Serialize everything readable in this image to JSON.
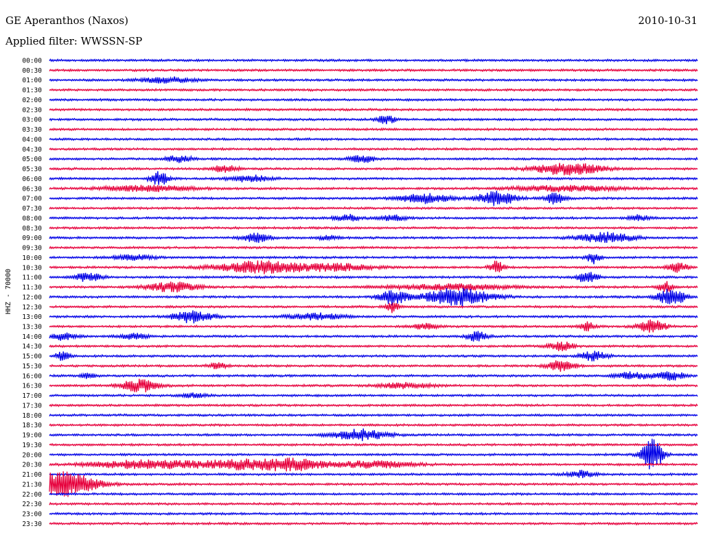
{
  "header": {
    "station": "GE Aperanthos (Naxos)",
    "date": "2010-10-31",
    "filter": "Applied filter: WWSSN-SP"
  },
  "chart_data": {
    "type": "line",
    "chart_kind": "helicorder",
    "ylabel": "HHZ - 70000",
    "row_times": [
      "00:00",
      "00:30",
      "01:00",
      "01:30",
      "02:00",
      "02:30",
      "03:00",
      "03:30",
      "04:00",
      "04:30",
      "05:00",
      "05:30",
      "06:00",
      "06:30",
      "07:00",
      "07:30",
      "08:00",
      "08:30",
      "09:00",
      "09:30",
      "10:00",
      "10:30",
      "11:00",
      "11:30",
      "12:00",
      "12:30",
      "13:00",
      "13:30",
      "14:00",
      "14:30",
      "15:00",
      "15:30",
      "16:00",
      "16:30",
      "17:00",
      "17:30",
      "18:00",
      "18:30",
      "19:00",
      "19:30",
      "20:00",
      "20:30",
      "21:00",
      "21:30",
      "22:00",
      "22:30",
      "23:00",
      "23:30"
    ],
    "row_minutes": 30,
    "trace_colors": [
      "#0000e6",
      "#e6003c"
    ],
    "events": [
      {
        "row": 2,
        "t": 0.18,
        "amp": 4,
        "dur": 0.04
      },
      {
        "row": 6,
        "t": 0.52,
        "amp": 6,
        "dur": 0.015
      },
      {
        "row": 10,
        "t": 0.2,
        "amp": 5,
        "dur": 0.02
      },
      {
        "row": 10,
        "t": 0.48,
        "amp": 6,
        "dur": 0.02
      },
      {
        "row": 11,
        "t": 0.27,
        "amp": 5,
        "dur": 0.02
      },
      {
        "row": 11,
        "t": 0.8,
        "amp": 9,
        "dur": 0.05
      },
      {
        "row": 12,
        "t": 0.17,
        "amp": 10,
        "dur": 0.015
      },
      {
        "row": 12,
        "t": 0.31,
        "amp": 5,
        "dur": 0.03
      },
      {
        "row": 13,
        "t": 0.15,
        "amp": 4,
        "dur": 0.07
      },
      {
        "row": 13,
        "t": 0.8,
        "amp": 4,
        "dur": 0.08
      },
      {
        "row": 14,
        "t": 0.58,
        "amp": 7,
        "dur": 0.04
      },
      {
        "row": 14,
        "t": 0.69,
        "amp": 10,
        "dur": 0.03
      },
      {
        "row": 14,
        "t": 0.78,
        "amp": 8,
        "dur": 0.015
      },
      {
        "row": 16,
        "t": 0.46,
        "amp": 5,
        "dur": 0.02
      },
      {
        "row": 16,
        "t": 0.53,
        "amp": 4,
        "dur": 0.02
      },
      {
        "row": 16,
        "t": 0.91,
        "amp": 5,
        "dur": 0.015
      },
      {
        "row": 18,
        "t": 0.32,
        "amp": 7,
        "dur": 0.02
      },
      {
        "row": 18,
        "t": 0.43,
        "amp": 4,
        "dur": 0.015
      },
      {
        "row": 18,
        "t": 0.86,
        "amp": 8,
        "dur": 0.04
      },
      {
        "row": 20,
        "t": 0.13,
        "amp": 4,
        "dur": 0.03
      },
      {
        "row": 20,
        "t": 0.84,
        "amp": 9,
        "dur": 0.01
      },
      {
        "row": 21,
        "t": 0.33,
        "amp": 9,
        "dur": 0.07
      },
      {
        "row": 21,
        "t": 0.45,
        "amp": 5,
        "dur": 0.05
      },
      {
        "row": 21,
        "t": 0.69,
        "amp": 10,
        "dur": 0.01
      },
      {
        "row": 21,
        "t": 0.97,
        "amp": 7,
        "dur": 0.015
      },
      {
        "row": 22,
        "t": 0.06,
        "amp": 7,
        "dur": 0.02
      },
      {
        "row": 22,
        "t": 0.83,
        "amp": 9,
        "dur": 0.015
      },
      {
        "row": 23,
        "t": 0.19,
        "amp": 7,
        "dur": 0.04
      },
      {
        "row": 23,
        "t": 0.62,
        "amp": 4,
        "dur": 0.09
      },
      {
        "row": 23,
        "t": 0.95,
        "amp": 9,
        "dur": 0.01
      },
      {
        "row": 24,
        "t": 0.53,
        "amp": 11,
        "dur": 0.02
      },
      {
        "row": 24,
        "t": 0.63,
        "amp": 13,
        "dur": 0.05
      },
      {
        "row": 24,
        "t": 0.96,
        "amp": 13,
        "dur": 0.02
      },
      {
        "row": 25,
        "t": 0.53,
        "amp": 8,
        "dur": 0.01
      },
      {
        "row": 26,
        "t": 0.22,
        "amp": 9,
        "dur": 0.03
      },
      {
        "row": 26,
        "t": 0.41,
        "amp": 5,
        "dur": 0.04
      },
      {
        "row": 27,
        "t": 0.58,
        "amp": 4,
        "dur": 0.02
      },
      {
        "row": 27,
        "t": 0.83,
        "amp": 7,
        "dur": 0.01
      },
      {
        "row": 27,
        "t": 0.93,
        "amp": 10,
        "dur": 0.02
      },
      {
        "row": 28,
        "t": 0.02,
        "amp": 5,
        "dur": 0.02
      },
      {
        "row": 28,
        "t": 0.13,
        "amp": 4,
        "dur": 0.02
      },
      {
        "row": 28,
        "t": 0.66,
        "amp": 7,
        "dur": 0.015
      },
      {
        "row": 29,
        "t": 0.79,
        "amp": 6,
        "dur": 0.02
      },
      {
        "row": 30,
        "t": 0.02,
        "amp": 7,
        "dur": 0.01
      },
      {
        "row": 30,
        "t": 0.84,
        "amp": 7,
        "dur": 0.02
      },
      {
        "row": 31,
        "t": 0.79,
        "amp": 9,
        "dur": 0.02
      },
      {
        "row": 31,
        "t": 0.26,
        "amp": 4,
        "dur": 0.015
      },
      {
        "row": 32,
        "t": 0.06,
        "amp": 4,
        "dur": 0.01
      },
      {
        "row": 32,
        "t": 0.9,
        "amp": 5,
        "dur": 0.03
      },
      {
        "row": 32,
        "t": 0.96,
        "amp": 6,
        "dur": 0.02
      },
      {
        "row": 33,
        "t": 0.14,
        "amp": 9,
        "dur": 0.03
      },
      {
        "row": 33,
        "t": 0.55,
        "amp": 4,
        "dur": 0.04
      },
      {
        "row": 34,
        "t": 0.22,
        "amp": 3,
        "dur": 0.02
      },
      {
        "row": 38,
        "t": 0.48,
        "amp": 8,
        "dur": 0.04
      },
      {
        "row": 40,
        "t": 0.93,
        "amp": 26,
        "dur": 0.015
      },
      {
        "row": 41,
        "t": 0.14,
        "amp": 6,
        "dur": 0.08
      },
      {
        "row": 41,
        "t": 0.3,
        "amp": 7,
        "dur": 0.08
      },
      {
        "row": 41,
        "t": 0.38,
        "amp": 6,
        "dur": 0.05
      },
      {
        "row": 41,
        "t": 0.5,
        "amp": 5,
        "dur": 0.06
      },
      {
        "row": 42,
        "t": 0.82,
        "amp": 5,
        "dur": 0.02
      },
      {
        "row": 43,
        "t": 0.02,
        "amp": 18,
        "dur": 0.05
      }
    ]
  }
}
